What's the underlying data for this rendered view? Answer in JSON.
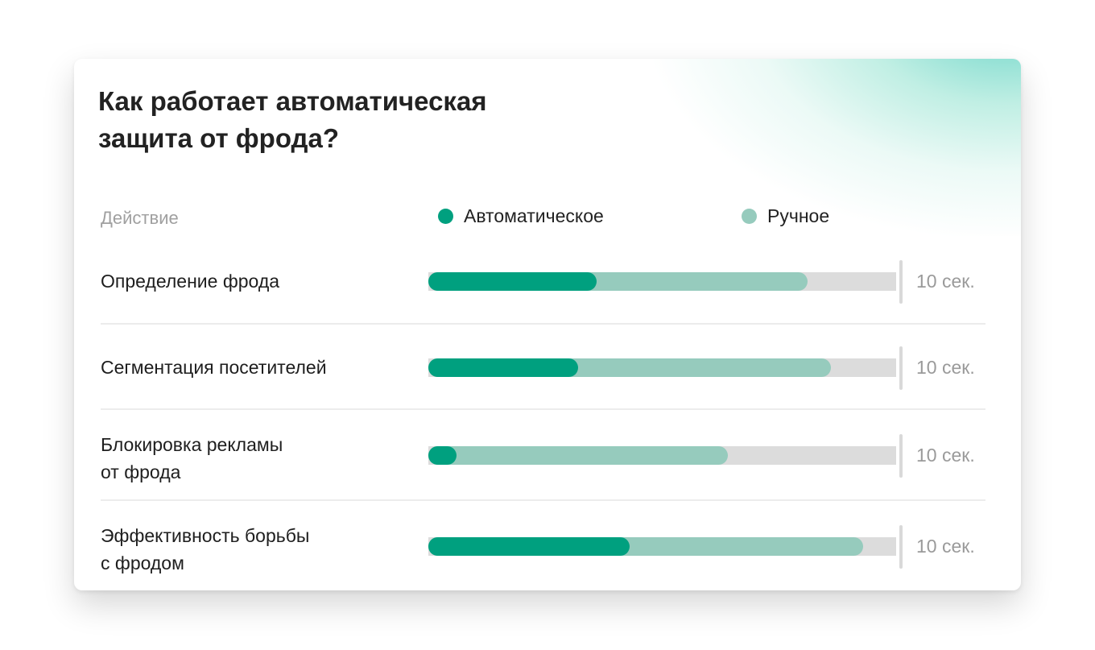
{
  "card": {
    "title_line1": "Как работает автоматическая",
    "title_line2": "защита от фрода?"
  },
  "header": {
    "column_label": "Действие"
  },
  "legend": [
    {
      "label": "Автоматическое",
      "color": "#00a07f"
    },
    {
      "label": "Ручное",
      "color": "#96cbbd"
    }
  ],
  "colors": {
    "auto": "#00a07f",
    "manual": "#96cbbd",
    "track": "#dcdcdc",
    "marker": "#d9d9d9",
    "accent_glow": "#5ccfc0"
  },
  "rows": [
    {
      "line1": "Определение фрода",
      "line2": "",
      "auto": 3.6,
      "manual": 8.1,
      "value_label": "10 сек."
    },
    {
      "line1": "Сегментация посетителей",
      "line2": "",
      "auto": 3.2,
      "manual": 8.6,
      "value_label": "10 сек."
    },
    {
      "line1": "Блокировка рекламы",
      "line2": "от фрода",
      "auto": 0.6,
      "manual": 6.4,
      "value_label": "10 сек."
    },
    {
      "line1": "Эффективность борьбы",
      "line2": "с фродом",
      "auto": 4.3,
      "manual": 9.3,
      "value_label": "10 сек."
    }
  ],
  "chart_data": {
    "type": "bar",
    "orientation": "horizontal",
    "title": "Как работает автоматическая защита от фрода?",
    "xlabel": "",
    "ylabel": "Действие",
    "categories": [
      "Определение фрода",
      "Сегментация посетителей",
      "Блокировка рекламы от фрода",
      "Эффективность борьбы с фродом"
    ],
    "series": [
      {
        "name": "Автоматическое",
        "color": "#00a07f",
        "values": [
          3.6,
          3.2,
          0.6,
          4.3
        ]
      },
      {
        "name": "Ручное",
        "color": "#96cbbd",
        "values": [
          8.1,
          8.6,
          6.4,
          9.3
        ]
      }
    ],
    "xlim": [
      0,
      10
    ],
    "max_label": "10 сек.",
    "legend_position": "top",
    "grid": false,
    "overlapping_bars": true
  }
}
